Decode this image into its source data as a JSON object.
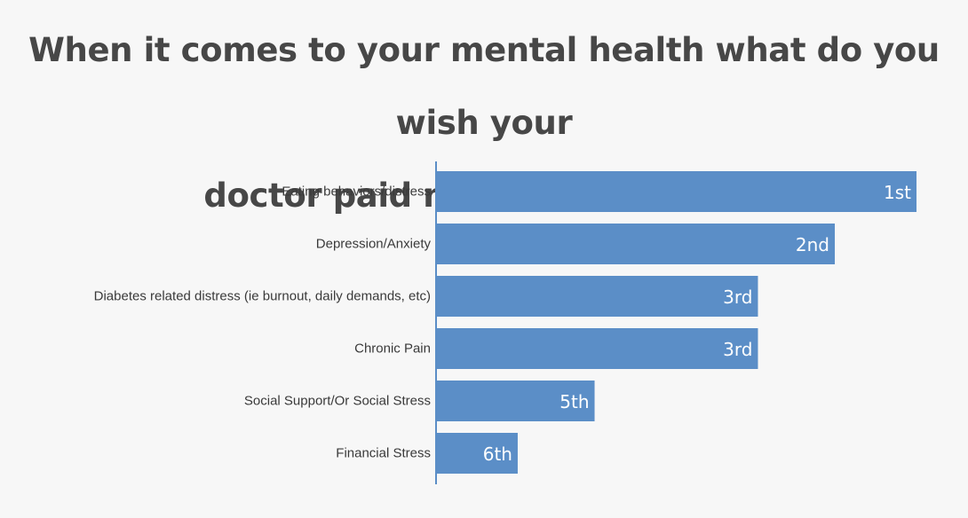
{
  "chart_data": {
    "type": "bar",
    "orientation": "horizontal",
    "title_lines": [
      "When it comes to your mental health what do you wish your",
      "doctor paid more attention to?"
    ],
    "categories": [
      "Eating behaviors/distress",
      "Depression/Anxiety",
      "Diabetes related distress (ie burnout, daily demands, etc)",
      "Chronic Pain",
      "Social Support/Or Social Stress",
      "Financial Stress"
    ],
    "values": [
      100,
      83,
      67,
      67,
      33,
      17
    ],
    "data_labels": [
      "1st",
      "2nd",
      "3rd",
      "3rd",
      "5th",
      "6th"
    ],
    "xlim": [
      0,
      100
    ],
    "grid": false,
    "legend": "none",
    "bar_color": "#5b8ec7",
    "axis_color": "#5b8ec7"
  }
}
